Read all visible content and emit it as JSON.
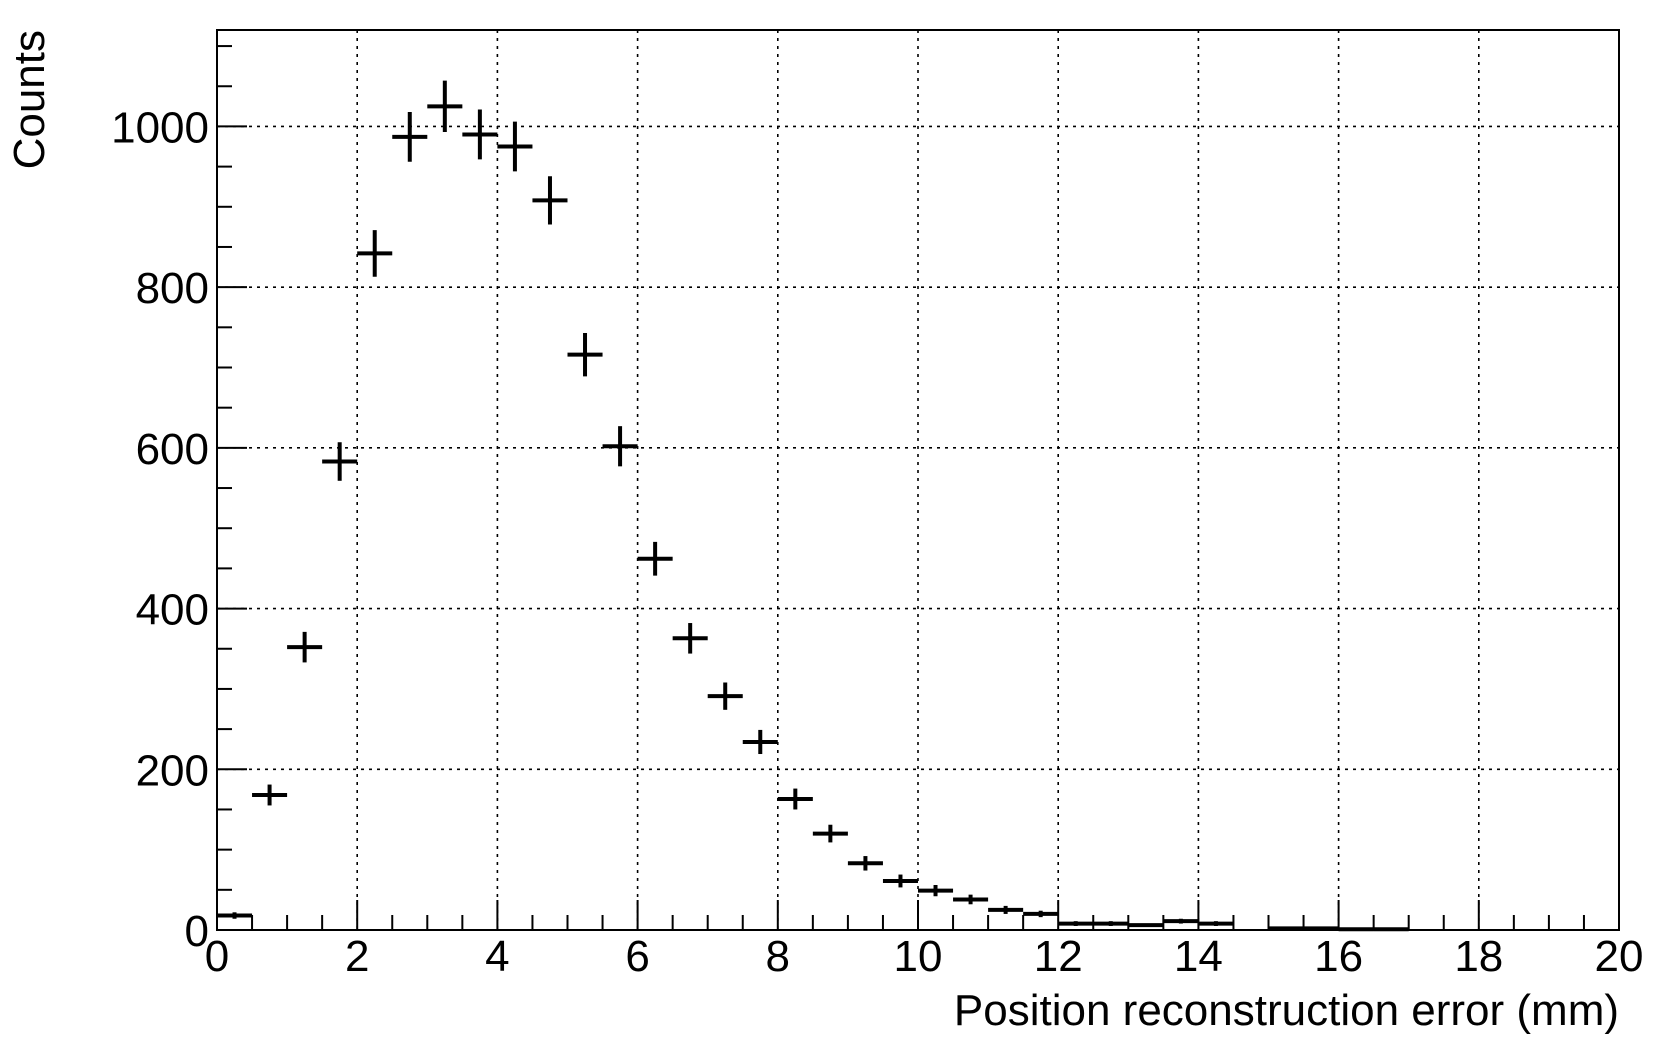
{
  "chart_data": {
    "type": "scatter",
    "title": "",
    "xlabel": "Position reconstruction error (mm)",
    "ylabel": "Counts",
    "xlim": [
      0,
      20
    ],
    "ylim": [
      0,
      1120
    ],
    "grid": true,
    "x_ticks": [
      "0",
      "2",
      "4",
      "6",
      "8",
      "10",
      "12",
      "14",
      "16",
      "18",
      "20"
    ],
    "y_ticks": [
      "0",
      "200",
      "400",
      "600",
      "800",
      "1000"
    ],
    "bin_width": 0.5,
    "series": [
      {
        "points": [
          {
            "x": 0.25,
            "y": 18,
            "err": 4
          },
          {
            "x": 0.75,
            "y": 168,
            "err": 13
          },
          {
            "x": 1.25,
            "y": 352,
            "err": 19
          },
          {
            "x": 1.75,
            "y": 583,
            "err": 24
          },
          {
            "x": 2.25,
            "y": 842,
            "err": 29
          },
          {
            "x": 2.75,
            "y": 987,
            "err": 31
          },
          {
            "x": 3.25,
            "y": 1025,
            "err": 32
          },
          {
            "x": 3.75,
            "y": 990,
            "err": 31
          },
          {
            "x": 4.25,
            "y": 975,
            "err": 31
          },
          {
            "x": 4.75,
            "y": 908,
            "err": 30
          },
          {
            "x": 5.25,
            "y": 716,
            "err": 27
          },
          {
            "x": 5.75,
            "y": 602,
            "err": 25
          },
          {
            "x": 6.25,
            "y": 462,
            "err": 21
          },
          {
            "x": 6.75,
            "y": 363,
            "err": 19
          },
          {
            "x": 7.25,
            "y": 291,
            "err": 17
          },
          {
            "x": 7.75,
            "y": 234,
            "err": 15
          },
          {
            "x": 8.25,
            "y": 163,
            "err": 13
          },
          {
            "x": 8.75,
            "y": 120,
            "err": 11
          },
          {
            "x": 9.25,
            "y": 83,
            "err": 9
          },
          {
            "x": 9.75,
            "y": 61,
            "err": 8
          },
          {
            "x": 10.25,
            "y": 49,
            "err": 7
          },
          {
            "x": 10.75,
            "y": 38,
            "err": 6
          },
          {
            "x": 11.25,
            "y": 25,
            "err": 5
          },
          {
            "x": 11.75,
            "y": 20,
            "err": 4
          },
          {
            "x": 12.25,
            "y": 8,
            "err": 3
          },
          {
            "x": 12.75,
            "y": 8,
            "err": 3
          },
          {
            "x": 13.25,
            "y": 6,
            "err": 2
          },
          {
            "x": 13.75,
            "y": 11,
            "err": 3
          },
          {
            "x": 14.25,
            "y": 8,
            "err": 3
          },
          {
            "x": 15.25,
            "y": 2,
            "err": 1
          },
          {
            "x": 15.75,
            "y": 2,
            "err": 1
          },
          {
            "x": 16.25,
            "y": 1,
            "err": 1
          },
          {
            "x": 16.75,
            "y": 1,
            "err": 1
          }
        ]
      }
    ]
  }
}
